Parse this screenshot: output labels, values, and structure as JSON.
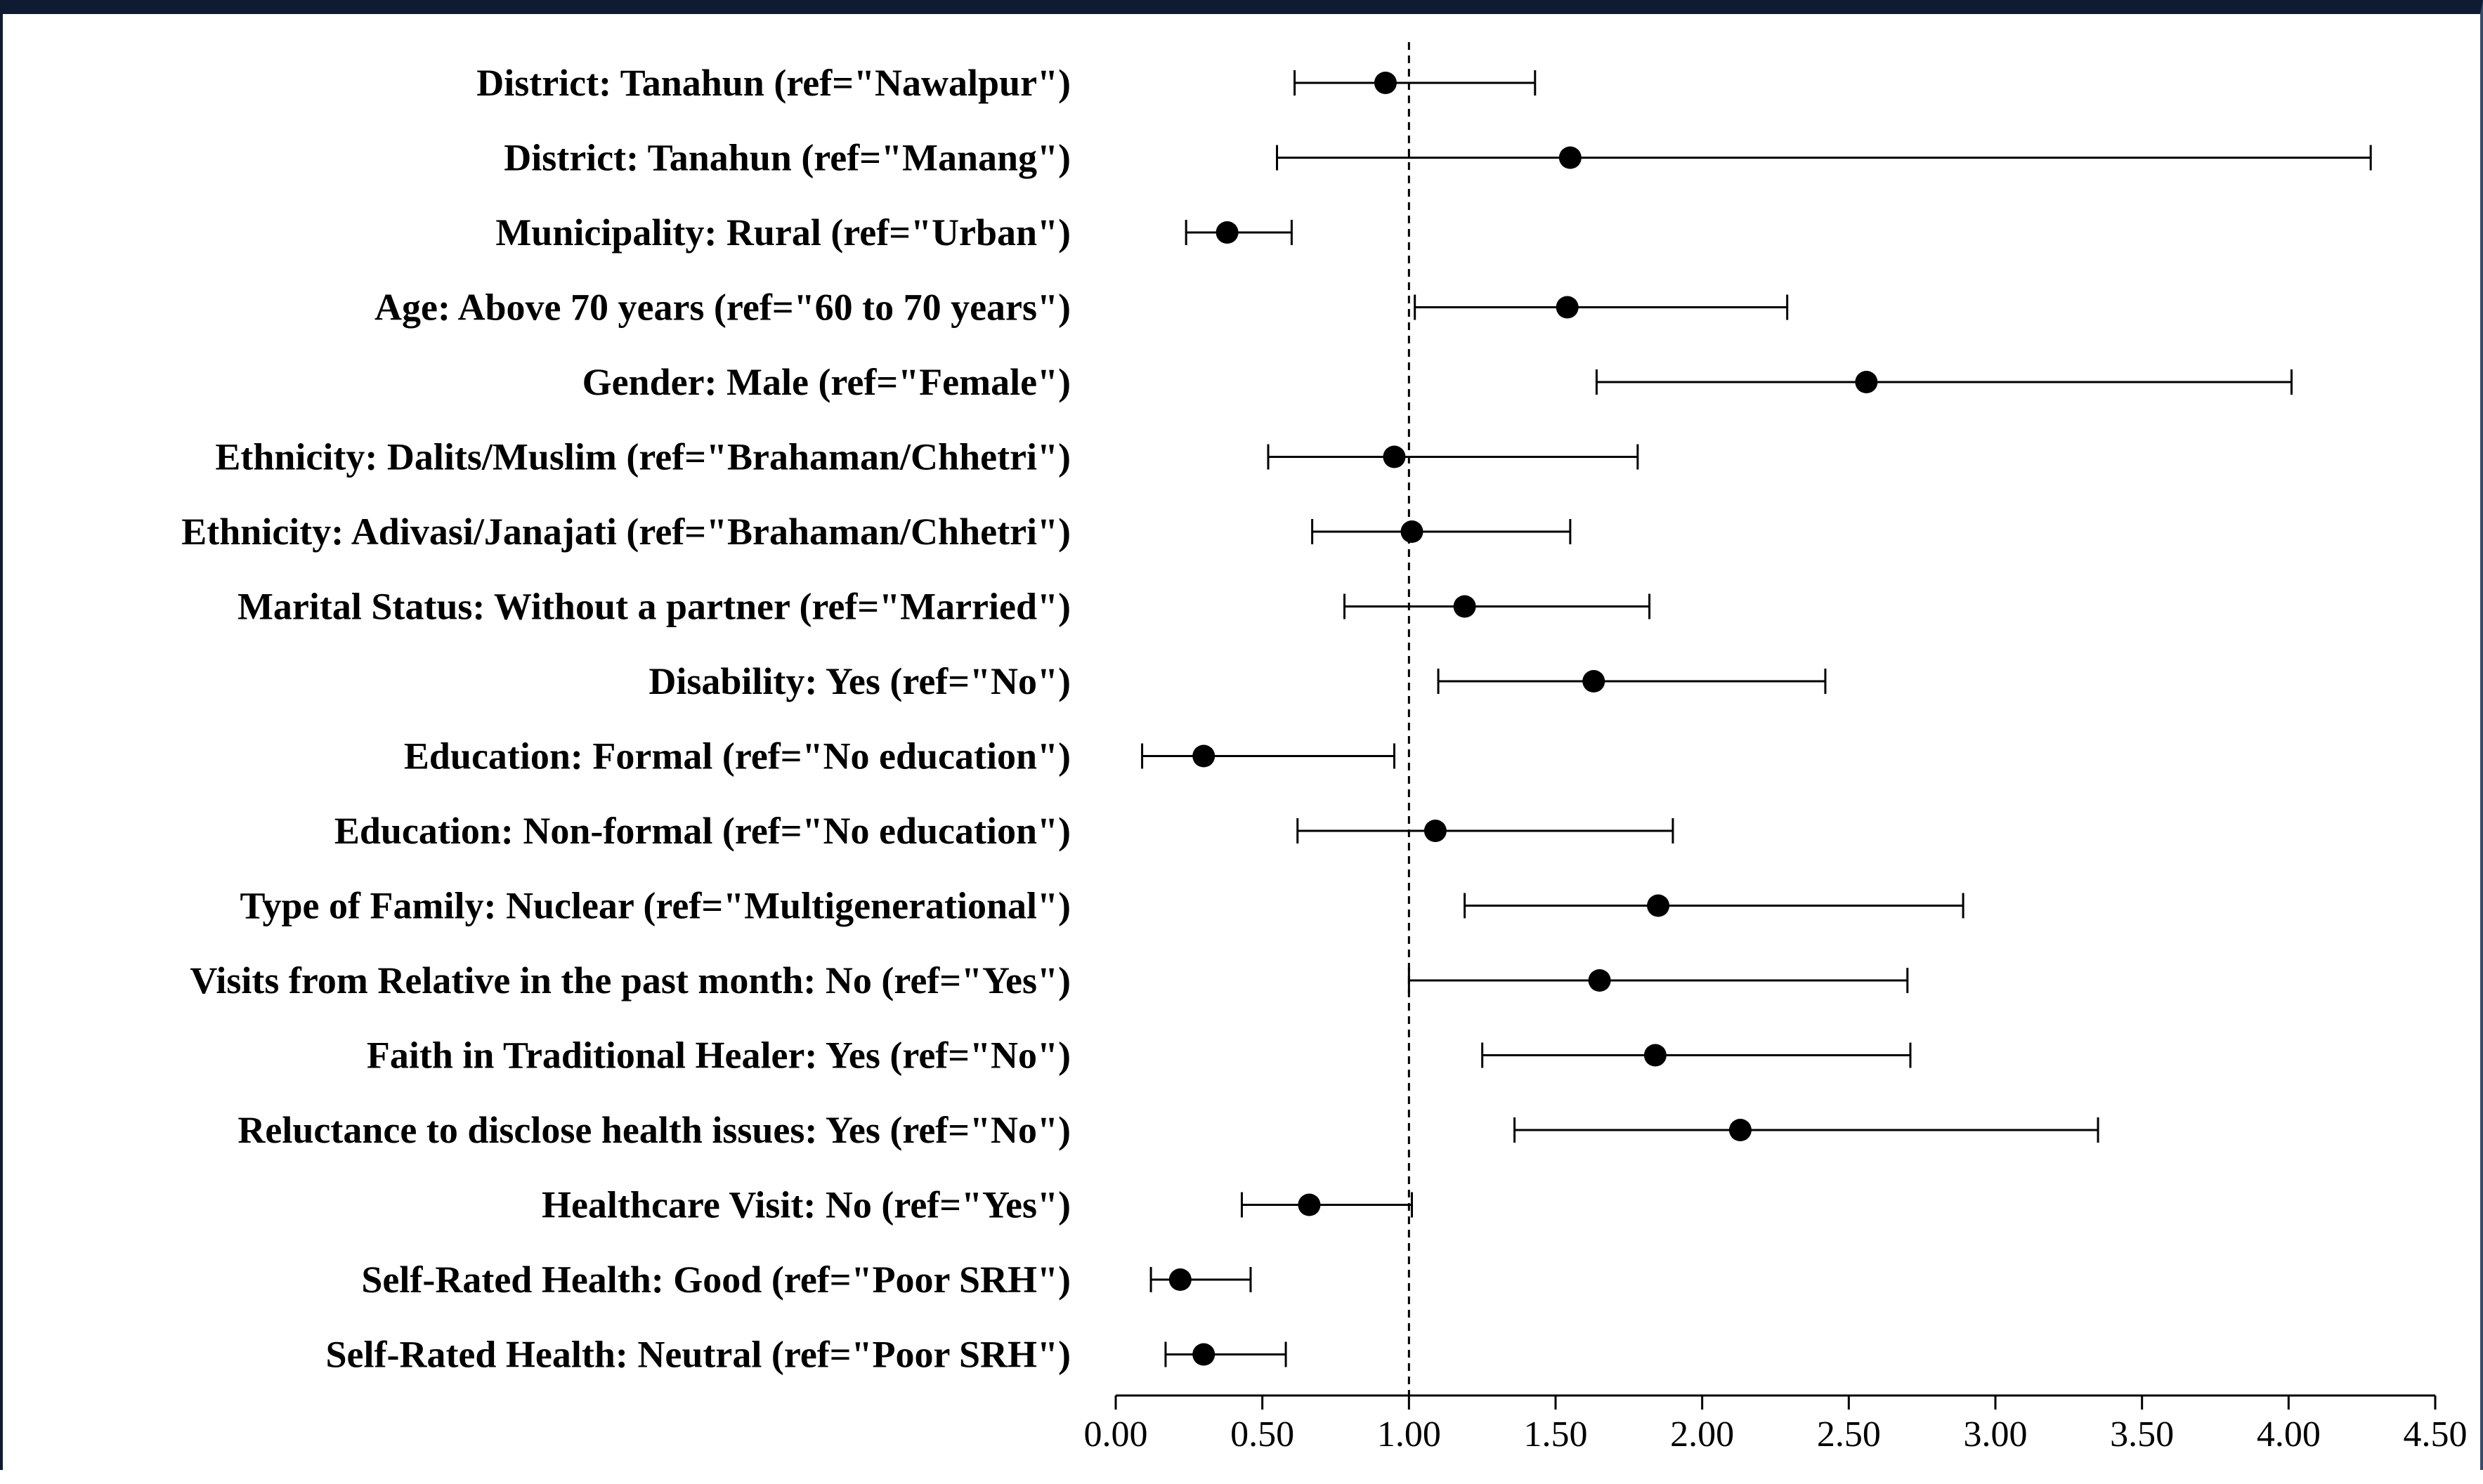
{
  "chart_data": {
    "type": "scatter",
    "title": "",
    "xlabel": "",
    "ylabel": "",
    "xlim": [
      0,
      4.5
    ],
    "x_ticks": [
      "0.00",
      "0.50",
      "1.00",
      "1.50",
      "2.00",
      "2.50",
      "3.00",
      "3.50",
      "4.00",
      "4.50"
    ],
    "reference_line": 1.0,
    "grid": false,
    "rows": [
      {
        "label": "District: Tanahun (ref=\"Nawalpur\")",
        "estimate": 0.92,
        "lower": 0.61,
        "upper": 1.43
      },
      {
        "label": "District: Tanahun (ref=\"Manang\")",
        "estimate": 1.55,
        "lower": 0.55,
        "upper": 4.28
      },
      {
        "label": "Municipality: Rural (ref=\"Urban\")",
        "estimate": 0.38,
        "lower": 0.24,
        "upper": 0.6
      },
      {
        "label": "Age: Above 70 years (ref=\"60 to 70 years\")",
        "estimate": 1.54,
        "lower": 1.02,
        "upper": 2.29
      },
      {
        "label": "Gender: Male (ref=\"Female\")",
        "estimate": 2.56,
        "lower": 1.64,
        "upper": 4.01
      },
      {
        "label": "Ethnicity: Dalits/Muslim (ref=\"Brahaman/Chhetri\")",
        "estimate": 0.95,
        "lower": 0.52,
        "upper": 1.78
      },
      {
        "label": "Ethnicity: Adivasi/Janajati (ref=\"Brahaman/Chhetri\")",
        "estimate": 1.01,
        "lower": 0.67,
        "upper": 1.55
      },
      {
        "label": "Marital Status: Without a partner (ref=\"Married\")",
        "estimate": 1.19,
        "lower": 0.78,
        "upper": 1.82
      },
      {
        "label": "Disability: Yes (ref=\"No\")",
        "estimate": 1.63,
        "lower": 1.1,
        "upper": 2.42
      },
      {
        "label": "Education: Formal (ref=\"No education\")",
        "estimate": 0.3,
        "lower": 0.09,
        "upper": 0.95
      },
      {
        "label": "Education: Non-formal (ref=\"No education\")",
        "estimate": 1.09,
        "lower": 0.62,
        "upper": 1.9
      },
      {
        "label": "Type of Family: Nuclear (ref=\"Multigenerational\")",
        "estimate": 1.85,
        "lower": 1.19,
        "upper": 2.89
      },
      {
        "label": "Visits from Relative in the past month: No (ref=\"Yes\")",
        "estimate": 1.65,
        "lower": 1.0,
        "upper": 2.7
      },
      {
        "label": "Faith in Traditional Healer: Yes (ref=\"No\")",
        "estimate": 1.84,
        "lower": 1.25,
        "upper": 2.71
      },
      {
        "label": "Reluctance to disclose health issues: Yes (ref=\"No\")",
        "estimate": 2.13,
        "lower": 1.36,
        "upper": 3.35
      },
      {
        "label": "Healthcare Visit: No (ref=\"Yes\")",
        "estimate": 0.66,
        "lower": 0.43,
        "upper": 1.01
      },
      {
        "label": "Self-Rated Health: Good (ref=\"Poor SRH\")",
        "estimate": 0.22,
        "lower": 0.12,
        "upper": 0.46
      },
      {
        "label": "Self-Rated Health: Neutral (ref=\"Poor SRH\")",
        "estimate": 0.3,
        "lower": 0.17,
        "upper": 0.58
      }
    ]
  }
}
